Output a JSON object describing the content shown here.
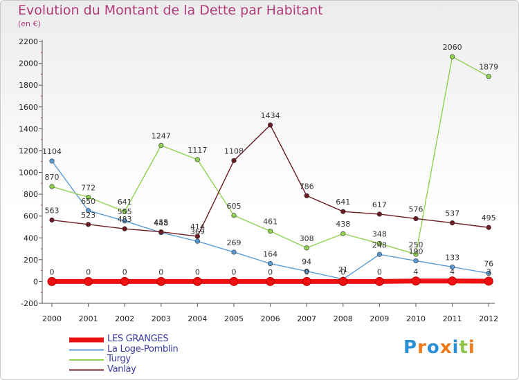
{
  "title": "Evolution du Montant de la Dette par Habitant",
  "subtitle": "(en €)",
  "logo_text": "Proxiti",
  "chart_data": {
    "type": "line",
    "title": "Evolution du Montant de la Dette par Habitant",
    "subtitle": "(en €)",
    "x": [
      "2000",
      "2001",
      "2002",
      "2003",
      "2004",
      "2005",
      "2006",
      "2007",
      "2008",
      "2009",
      "2010",
      "2011",
      "2012"
    ],
    "yticks": [
      "2200",
      "2000",
      "1800",
      "1600",
      "1400",
      "1200",
      "1000",
      "800",
      "600",
      "400",
      "200",
      "0",
      "-200"
    ],
    "ylim": [
      -200,
      2200
    ],
    "grid": false,
    "legend_position": "bottom-left",
    "series": [
      {
        "name": "LES GRANGES",
        "color": "#ee1111",
        "values": [
          0,
          0,
          0,
          0,
          0,
          0,
          0,
          0,
          0,
          0,
          4,
          4,
          3
        ],
        "labels": [
          "0",
          "0",
          "0",
          "0",
          "0",
          "0",
          "0",
          "0",
          "0",
          "0",
          "4",
          "4",
          "3"
        ]
      },
      {
        "name": "La Loge-Pomblin",
        "color": "#5b9bd5",
        "values": [
          1104,
          650,
          555,
          448,
          369,
          269,
          164,
          94,
          21,
          248,
          190,
          133,
          76
        ],
        "labels": [
          "1104",
          "650",
          "555",
          "448",
          "369",
          "269",
          "164",
          "94",
          "21",
          "248",
          "190",
          "133",
          "76"
        ]
      },
      {
        "name": "Turgy",
        "color": "#8fd14f",
        "values": [
          870,
          772,
          641,
          1247,
          1117,
          605,
          461,
          308,
          438,
          348,
          250,
          2060,
          1879
        ],
        "labels": [
          "870",
          "772",
          "641",
          "1247",
          "1117",
          "605",
          "461",
          "308",
          "438",
          "348",
          "250",
          "2060",
          "1879"
        ]
      },
      {
        "name": "Vanlay",
        "color": "#6b1a22",
        "values": [
          563,
          523,
          483,
          455,
          414,
          1108,
          1434,
          786,
          641,
          617,
          576,
          537,
          495
        ],
        "labels": [
          "563",
          "523",
          "483",
          "455",
          "414",
          "1108",
          "1434",
          "786",
          "641",
          "617",
          "576",
          "537",
          "495"
        ]
      }
    ]
  }
}
